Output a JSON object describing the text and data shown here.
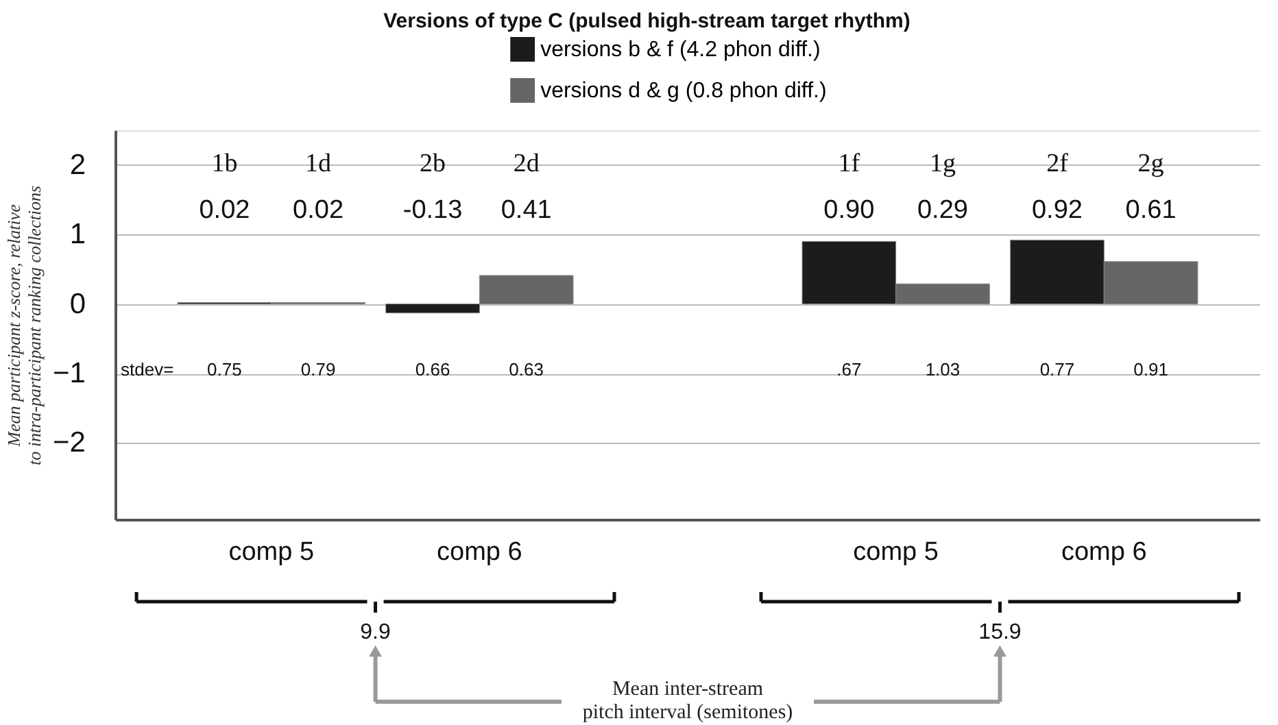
{
  "chart_data": {
    "type": "bar",
    "title": "Versions of type C (pulsed high-stream target rhythm)",
    "ylabel": "Mean participant z-score, relative\nto intra-participant ranking collections",
    "categories": [
      "comp 5",
      "comp 6",
      null,
      "comp 5",
      "comp 6"
    ],
    "series": [
      {
        "name": "versions b & f (4.2 phon diff.)",
        "color": "#1c1c1c",
        "values": [
          0.02,
          -0.13,
          null,
          0.9,
          0.92
        ],
        "value_labels": [
          "0.02",
          "-0.13",
          null,
          "0.90",
          "0.92"
        ]
      },
      {
        "name": "versions d & g (0.8 phon diff.)",
        "color": "#666666",
        "values": [
          0.02,
          0.41,
          null,
          0.29,
          0.61
        ],
        "value_labels": [
          "0.02",
          "0.41",
          null,
          "0.29",
          "0.61"
        ]
      }
    ],
    "ylim": [
      -3.1,
      2.5
    ],
    "yticks": [
      -2,
      -1,
      0,
      1,
      2
    ],
    "grid": "y",
    "legend": "top",
    "annotations": [
      "1b",
      "1d",
      "2b",
      "2d",
      "1f",
      "1g",
      "2f",
      "2g",
      "stdev=",
      "0.75",
      "0.79",
      "0.66",
      "0.63",
      ".67",
      "1.03",
      "0.77",
      "0.91",
      "9.9",
      "15.9",
      "Mean inter-stream\npitch interval (semitones)"
    ]
  }
}
